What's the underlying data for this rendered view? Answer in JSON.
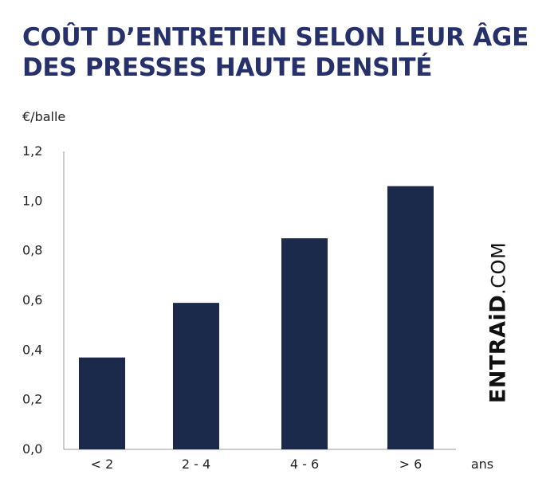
{
  "title_line1": "COÛT D’ENTRETIEN SELON LEUR ÂGE",
  "title_line2": "DES PRESSES HAUTE DENSITÉ",
  "brand": {
    "name": "ENTRAiD",
    "domain": ".COM"
  },
  "chart_data": {
    "type": "bar",
    "title": "COÛT D’ENTRETIEN SELON LEUR ÂGE DES PRESSES HAUTE DENSITÉ",
    "ylabel": "€/balle",
    "xlabel": "ans",
    "categories": [
      "< 2",
      "2 - 4",
      "4 - 6",
      "> 6"
    ],
    "values": [
      0.37,
      0.59,
      0.85,
      1.06
    ],
    "ylim": [
      0,
      1.2
    ],
    "yticks": [
      0.0,
      0.2,
      0.4,
      0.6,
      0.8,
      1.0,
      1.2
    ],
    "ytick_labels": [
      "0,0",
      "0,2",
      "0,4",
      "0,6",
      "0,8",
      "1,0",
      "1,2"
    ],
    "grid": false,
    "bar_color": "#1b2a4a",
    "axis_color": "#999999"
  }
}
